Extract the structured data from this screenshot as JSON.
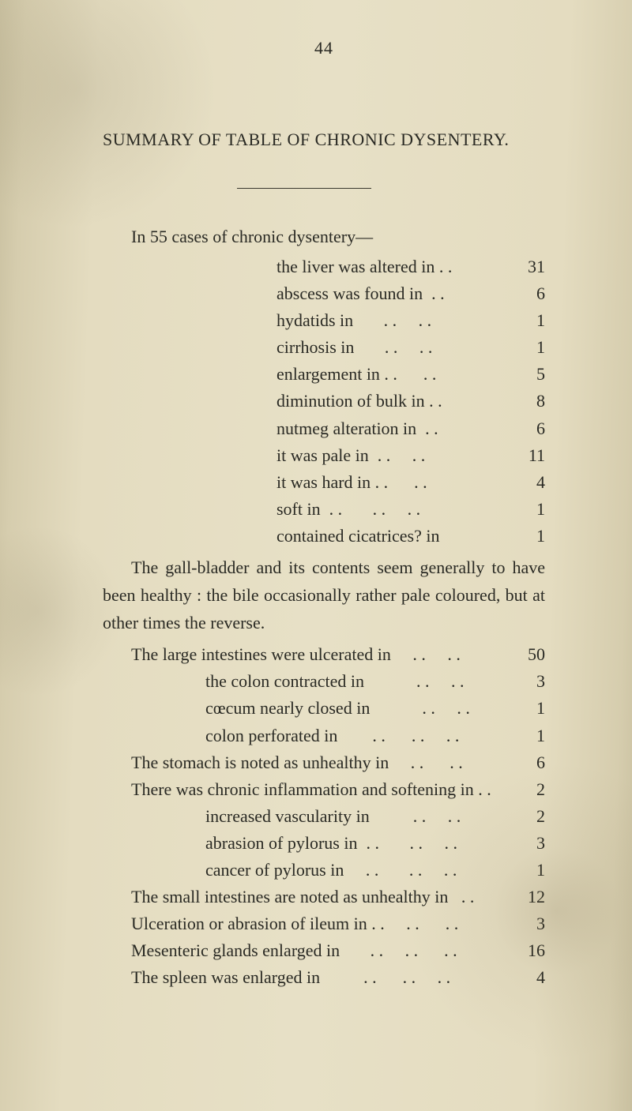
{
  "page_number": "44",
  "title": "SUMMARY OF TABLE OF CHRONIC DYSENTERY.",
  "lead_in": "In 55 cases of chronic dysentery—",
  "liver_rows": [
    {
      "label": "the liver was altered in . .",
      "value": "31"
    },
    {
      "label": "abscess was found in  . .",
      "value": "6"
    },
    {
      "label": "hydatids in       . .     . .",
      "value": "1"
    },
    {
      "label": "cirrhosis in       . .     . .",
      "value": "1"
    },
    {
      "label": "enlargement in . .      . .",
      "value": "5"
    },
    {
      "label": "diminution of bulk in . .",
      "value": "8"
    },
    {
      "label": "nutmeg alteration in  . .",
      "value": "6"
    },
    {
      "label": "it was pale in  . .     . .",
      "value": "11"
    },
    {
      "label": "it was hard in . .      . .",
      "value": "4"
    },
    {
      "label": "soft in  . .       . .     . .",
      "value": "1"
    },
    {
      "label": "contained cicatrices? in",
      "value": "1"
    }
  ],
  "middle_para": "The gall-bladder and its contents seem generally to have been healthy : the bile occasionally rather pale coloured, but at other times the reverse.",
  "list2": [
    {
      "label": "The large intestines were ulcerated in     . .     . .",
      "value": "50",
      "sub": false
    },
    {
      "label": "the colon contracted in            . .     . .",
      "value": "3",
      "sub": true
    },
    {
      "label": "cœcum nearly closed in            . .     . .",
      "value": "1",
      "sub": true
    },
    {
      "label": "colon perforated in        . .      . .     . .",
      "value": "1",
      "sub": true
    },
    {
      "label": "The stomach is noted as unhealthy in     . .      . .",
      "value": "6",
      "sub": false
    },
    {
      "label": "There was chronic inflammation and softening in . .",
      "value": "2",
      "sub": false
    },
    {
      "label": "increased vascularity in          . .     . .",
      "value": "2",
      "sub": true
    },
    {
      "label": "abrasion of pylorus in  . .       . .     . .",
      "value": "3",
      "sub": true
    },
    {
      "label": "cancer of pylorus in     . .       . .     . .",
      "value": "1",
      "sub": true
    },
    {
      "label": "The small intestines are noted as unhealthy in   . .",
      "value": "12",
      "sub": false
    },
    {
      "label": "Ulceration or abrasion of ileum in . .     . .      . .",
      "value": "3",
      "sub": false
    },
    {
      "label": "Mesenteric glands enlarged in       . .     . .      . .",
      "value": "16",
      "sub": false
    },
    {
      "label": "The spleen was enlarged in          . .      . .     . .",
      "value": "4",
      "sub": false
    }
  ]
}
